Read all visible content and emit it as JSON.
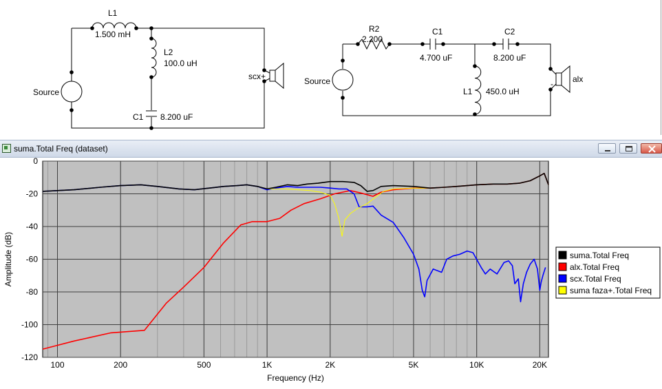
{
  "schematic_left": {
    "source_label": "Source",
    "l1_ref": "L1",
    "l1_value": "1.500 mH",
    "l2_ref": "L2",
    "l2_value": "100.0 uH",
    "c1_ref": "C1",
    "c1_value": "8.200 uF",
    "driver_label": "scx+"
  },
  "schematic_right": {
    "source_label": "Source",
    "r2_ref": "R2",
    "r2_value": "2.200",
    "c1_ref": "C1",
    "c1_value": "4.700 uF",
    "c2_ref": "C2",
    "c2_value": "8.200 uF",
    "l1_ref": "L1",
    "l1_value": "450.0 uH",
    "driver_label": "alx",
    "driver_polarity": "-"
  },
  "window": {
    "title": "suma.Total Freq (dataset)"
  },
  "chart_data": {
    "type": "line",
    "xlabel": "Frequency (Hz)",
    "ylabel": "Amplitude (dB)",
    "x_scale": "log",
    "xlim": [
      85,
      22000
    ],
    "ylim": [
      -120,
      0
    ],
    "x_ticks": [
      100,
      200,
      500,
      1000,
      2000,
      5000,
      10000,
      20000
    ],
    "x_tick_labels": [
      "100",
      "200",
      "500",
      "1K",
      "2K",
      "5K",
      "10K",
      "20K"
    ],
    "y_ticks": [
      0,
      -20,
      -40,
      -60,
      -80,
      -100,
      -120
    ],
    "y_tick_labels": [
      "0",
      "-20",
      "-40",
      "-60",
      "-80",
      "-100",
      "-120"
    ],
    "grid": true,
    "background": "#c0c0c0",
    "legend_position": "right",
    "series": [
      {
        "name": "suma.Total Freq",
        "color": "#000000",
        "points": [
          [
            85,
            -18.5
          ],
          [
            120,
            -17.5
          ],
          [
            160,
            -16
          ],
          [
            200,
            -15
          ],
          [
            250,
            -14.5
          ],
          [
            300,
            -15.5
          ],
          [
            380,
            -17
          ],
          [
            450,
            -17.5
          ],
          [
            530,
            -16.5
          ],
          [
            620,
            -15.5
          ],
          [
            720,
            -15
          ],
          [
            800,
            -14.5
          ],
          [
            900,
            -15.5
          ],
          [
            1000,
            -17
          ],
          [
            1100,
            -16
          ],
          [
            1250,
            -14.5
          ],
          [
            1400,
            -15
          ],
          [
            1550,
            -14
          ],
          [
            1750,
            -13.5
          ],
          [
            2000,
            -12.5
          ],
          [
            2300,
            -12.5
          ],
          [
            2600,
            -13
          ],
          [
            2800,
            -15
          ],
          [
            3000,
            -18.5
          ],
          [
            3200,
            -18
          ],
          [
            3500,
            -15.5
          ],
          [
            4000,
            -15
          ],
          [
            5000,
            -15.5
          ],
          [
            6000,
            -16.5
          ],
          [
            7000,
            -16
          ],
          [
            8000,
            -15.5
          ],
          [
            9000,
            -15
          ],
          [
            10000,
            -14.5
          ],
          [
            12000,
            -14
          ],
          [
            14000,
            -14
          ],
          [
            16000,
            -13.5
          ],
          [
            18000,
            -12
          ],
          [
            20000,
            -9
          ],
          [
            21000,
            -7.5
          ],
          [
            21500,
            -11
          ],
          [
            22000,
            -14.5
          ]
        ]
      },
      {
        "name": "alx.Total Freq",
        "color": "#ff0000",
        "points": [
          [
            85,
            -115
          ],
          [
            120,
            -110
          ],
          [
            180,
            -105
          ],
          [
            260,
            -103.5
          ],
          [
            330,
            -87
          ],
          [
            400,
            -77
          ],
          [
            500,
            -65
          ],
          [
            620,
            -50
          ],
          [
            750,
            -39
          ],
          [
            850,
            -37
          ],
          [
            1000,
            -37
          ],
          [
            1150,
            -35
          ],
          [
            1300,
            -30
          ],
          [
            1500,
            -26
          ],
          [
            1800,
            -23
          ],
          [
            2100,
            -20
          ],
          [
            2500,
            -18
          ],
          [
            2800,
            -19.5
          ],
          [
            3200,
            -21.5
          ],
          [
            3500,
            -19
          ],
          [
            4000,
            -17.5
          ],
          [
            5000,
            -16.5
          ],
          [
            6000,
            -16.5
          ],
          [
            7000,
            -16
          ],
          [
            8000,
            -15.5
          ],
          [
            9000,
            -15
          ],
          [
            10000,
            -14.5
          ],
          [
            12000,
            -14
          ],
          [
            14000,
            -14
          ],
          [
            16000,
            -13.5
          ],
          [
            18000,
            -12
          ],
          [
            20000,
            -9
          ],
          [
            21000,
            -7.5
          ],
          [
            21500,
            -11
          ],
          [
            22000,
            -14.5
          ]
        ]
      },
      {
        "name": "scx.Total Freq",
        "color": "#0000ff",
        "points": [
          [
            85,
            -18.5
          ],
          [
            120,
            -17.5
          ],
          [
            160,
            -16
          ],
          [
            200,
            -15
          ],
          [
            250,
            -14.5
          ],
          [
            300,
            -15.5
          ],
          [
            380,
            -17
          ],
          [
            450,
            -17.5
          ],
          [
            530,
            -16.5
          ],
          [
            620,
            -15.5
          ],
          [
            720,
            -15
          ],
          [
            800,
            -14.5
          ],
          [
            900,
            -15.5
          ],
          [
            1000,
            -17.5
          ],
          [
            1100,
            -16.5
          ],
          [
            1250,
            -15.5
          ],
          [
            1400,
            -16
          ],
          [
            1600,
            -16
          ],
          [
            1800,
            -16
          ],
          [
            2000,
            -16.5
          ],
          [
            2200,
            -17
          ],
          [
            2400,
            -17
          ],
          [
            2600,
            -20
          ],
          [
            2750,
            -28
          ],
          [
            3000,
            -28
          ],
          [
            3200,
            -27.5
          ],
          [
            3500,
            -33
          ],
          [
            4000,
            -37.5
          ],
          [
            4500,
            -47
          ],
          [
            5000,
            -57
          ],
          [
            5300,
            -66
          ],
          [
            5500,
            -79
          ],
          [
            5650,
            -83
          ],
          [
            5800,
            -73
          ],
          [
            6200,
            -66
          ],
          [
            6800,
            -68
          ],
          [
            7200,
            -60
          ],
          [
            7700,
            -58
          ],
          [
            8300,
            -57
          ],
          [
            9000,
            -55
          ],
          [
            9600,
            -56
          ],
          [
            10500,
            -65
          ],
          [
            11000,
            -69
          ],
          [
            11600,
            -66
          ],
          [
            12500,
            -69
          ],
          [
            13500,
            -62
          ],
          [
            14200,
            -61
          ],
          [
            14800,
            -64
          ],
          [
            15200,
            -75
          ],
          [
            15800,
            -72
          ],
          [
            16200,
            -86
          ],
          [
            16700,
            -75
          ],
          [
            17300,
            -68
          ],
          [
            18000,
            -63
          ],
          [
            18800,
            -60
          ],
          [
            19500,
            -66
          ],
          [
            20000,
            -79
          ],
          [
            20300,
            -74
          ],
          [
            20700,
            -70
          ],
          [
            21300,
            -65
          ]
        ]
      },
      {
        "name": "suma faza+.Total Freq",
        "color": "#ffff00",
        "points": [
          [
            85,
            -18.5
          ],
          [
            120,
            -17.5
          ],
          [
            160,
            -16
          ],
          [
            200,
            -15
          ],
          [
            250,
            -14.5
          ],
          [
            300,
            -15.5
          ],
          [
            380,
            -17
          ],
          [
            450,
            -17.5
          ],
          [
            530,
            -16.5
          ],
          [
            620,
            -15.5
          ],
          [
            720,
            -15
          ],
          [
            800,
            -14.5
          ],
          [
            900,
            -15.5
          ],
          [
            1000,
            -17
          ],
          [
            1200,
            -17
          ],
          [
            1400,
            -17.5
          ],
          [
            1600,
            -18
          ],
          [
            1800,
            -19
          ],
          [
            2000,
            -21
          ],
          [
            2100,
            -26
          ],
          [
            2200,
            -35
          ],
          [
            2280,
            -46
          ],
          [
            2350,
            -36
          ],
          [
            2500,
            -32
          ],
          [
            2700,
            -29
          ],
          [
            3000,
            -26
          ],
          [
            3300,
            -22
          ],
          [
            3600,
            -18.5
          ],
          [
            4000,
            -17
          ],
          [
            5000,
            -16.5
          ],
          [
            6000,
            -16.5
          ],
          [
            7000,
            -16
          ],
          [
            8000,
            -15.5
          ],
          [
            9000,
            -15
          ],
          [
            10000,
            -14.5
          ],
          [
            12000,
            -14
          ],
          [
            14000,
            -14
          ],
          [
            16000,
            -13.5
          ],
          [
            18000,
            -12
          ],
          [
            20000,
            -9
          ],
          [
            21000,
            -7.5
          ],
          [
            21500,
            -11
          ],
          [
            22000,
            -14.5
          ]
        ]
      }
    ]
  }
}
